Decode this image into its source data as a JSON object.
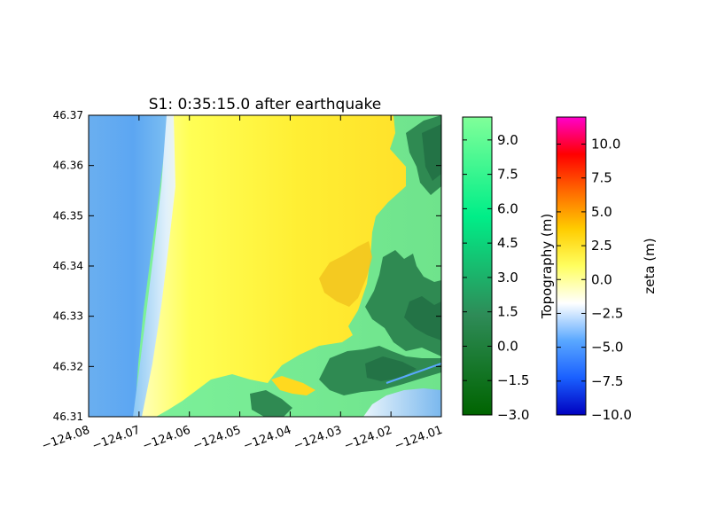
{
  "chart_data": [
    {
      "type": "heatmap",
      "title": "S1: 0:35:15.0 after earthquake",
      "xlabel": "",
      "ylabel": "",
      "xlim": [
        -124.08,
        -124.01
      ],
      "ylim": [
        46.31,
        46.37
      ],
      "x_ticks": [
        "−124.08",
        "−124.07",
        "−124.06",
        "−124.05",
        "−124.04",
        "−124.03",
        "−124.02",
        "−124.01"
      ],
      "y_ticks": [
        "46.31",
        "46.32",
        "46.33",
        "46.34",
        "46.35",
        "46.36",
        "46.37"
      ],
      "grid": false,
      "layers": [
        {
          "name": "Topography (m)",
          "shown_where": "land (east shore)",
          "colormap": "land"
        },
        {
          "name": "zeta (m)",
          "shown_where": "ocean and inundated area",
          "colormap": "tsunami"
        }
      ]
    },
    {
      "type": "colorbar",
      "label": "Topography (m)",
      "range": [
        -3.0,
        10.0
      ],
      "ticks": [
        "−3.0",
        "−1.5",
        "0.0",
        "1.5",
        "3.0",
        "4.5",
        "6.0",
        "7.5",
        "9.0"
      ],
      "colors": [
        "#006400",
        "#2e8b57",
        "#00ee88",
        "#80ff99"
      ]
    },
    {
      "type": "colorbar",
      "label": "zeta (m)",
      "range": [
        -10.0,
        12.0
      ],
      "ticks": [
        "−10.0",
        "−7.5",
        "−5.0",
        "−2.5",
        "0.0",
        "2.5",
        "5.0",
        "7.5",
        "10.0"
      ],
      "colors": [
        "#0000c0",
        "#1a60ff",
        "#5aa8ff",
        "#ffffff",
        "#ffff60",
        "#ffcc00",
        "#ff6a00",
        "#ff0000",
        "#ff00cc"
      ]
    }
  ]
}
